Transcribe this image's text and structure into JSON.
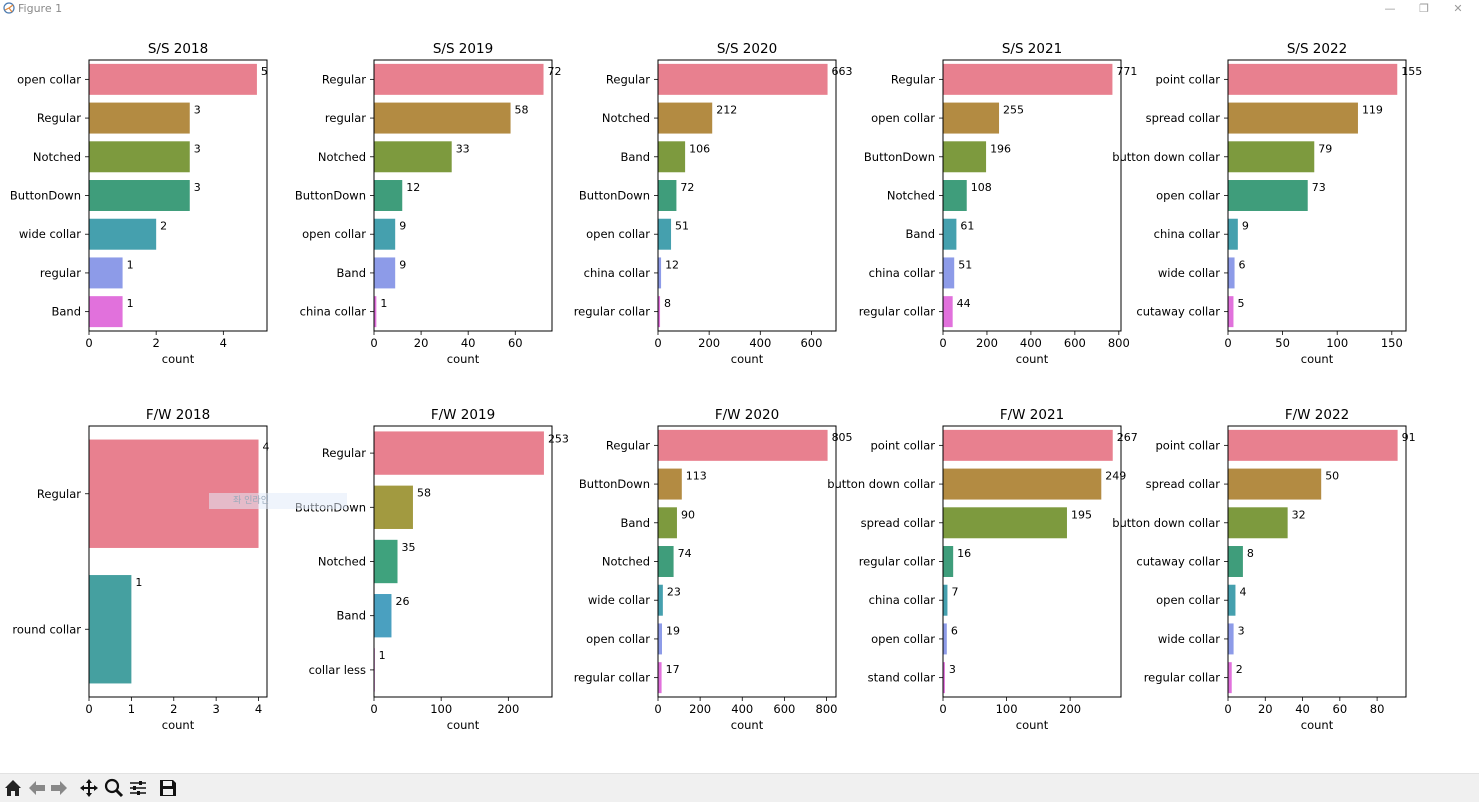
{
  "window": {
    "title": "Figure 1",
    "minimize": "—",
    "restore": "❐",
    "close": "✕"
  },
  "toolbar": {
    "buttons": [
      {
        "name": "home-icon"
      },
      {
        "name": "back-icon"
      },
      {
        "name": "forward-icon"
      },
      {
        "name": "pan-icon"
      },
      {
        "name": "zoom-icon"
      },
      {
        "name": "configure-subplots-icon"
      },
      {
        "name": "save-icon"
      }
    ]
  },
  "tooltip": "좌 인라인",
  "palette": [
    "#e8808f",
    "#b38b42",
    "#7d9a3e",
    "#3f9d7b",
    "#45a0ae",
    "#8d9be8",
    "#e171dc"
  ],
  "chart_data": [
    {
      "type": "bar",
      "orientation": "horizontal",
      "title": "S/S 2018",
      "xlabel": "count",
      "categories": [
        "open collar",
        "Regular",
        "Notched",
        "ButtonDown",
        "wide collar",
        "regular",
        "Band"
      ],
      "values": [
        5,
        3,
        3,
        3,
        2,
        1,
        1
      ],
      "xlim": [
        0,
        5.3
      ],
      "xticks": [
        0,
        2,
        4
      ]
    },
    {
      "type": "bar",
      "orientation": "horizontal",
      "title": "S/S 2019",
      "xlabel": "count",
      "categories": [
        "Regular",
        "regular",
        "Notched",
        "ButtonDown",
        "open collar",
        "Band",
        "china collar"
      ],
      "values": [
        72,
        58,
        33,
        12,
        9,
        9,
        1
      ],
      "xlim": [
        0,
        75.6
      ],
      "xticks": [
        0,
        20,
        40,
        60
      ]
    },
    {
      "type": "bar",
      "orientation": "horizontal",
      "title": "S/S 2020",
      "xlabel": "count",
      "categories": [
        "Regular",
        "Notched",
        "Band",
        "ButtonDown",
        "open collar",
        "china collar",
        "regular collar"
      ],
      "values": [
        663,
        212,
        106,
        72,
        51,
        12,
        8
      ],
      "xlim": [
        0,
        696
      ],
      "xticks": [
        0,
        200,
        400,
        600
      ]
    },
    {
      "type": "bar",
      "orientation": "horizontal",
      "title": "S/S 2021",
      "xlabel": "count",
      "categories": [
        "Regular",
        "open collar",
        "ButtonDown",
        "Notched",
        "Band",
        "china collar",
        "regular collar"
      ],
      "values": [
        771,
        255,
        196,
        108,
        61,
        51,
        44
      ],
      "xlim": [
        0,
        810
      ],
      "xticks": [
        0,
        200,
        400,
        600,
        800
      ]
    },
    {
      "type": "bar",
      "orientation": "horizontal",
      "title": "S/S 2022",
      "xlabel": "count",
      "categories": [
        "point collar",
        "spread collar",
        "button down collar",
        "open collar",
        "china collar",
        "wide collar",
        "cutaway collar"
      ],
      "values": [
        155,
        119,
        79,
        73,
        9,
        6,
        5
      ],
      "xlim": [
        0,
        163
      ],
      "xticks": [
        0,
        50,
        100,
        150
      ]
    },
    {
      "type": "bar",
      "orientation": "horizontal",
      "title": "F/W 2018",
      "xlabel": "count",
      "categories": [
        "Regular",
        "round collar"
      ],
      "values": [
        4,
        1
      ],
      "colors": [
        "#e8808f",
        "#45a0a0"
      ],
      "xlim": [
        0,
        4.2
      ],
      "xticks": [
        0,
        1,
        2,
        3,
        4
      ]
    },
    {
      "type": "bar",
      "orientation": "horizontal",
      "title": "F/W 2019",
      "xlabel": "count",
      "categories": [
        "Regular",
        "ButtonDown",
        "Notched",
        "Band",
        "collar less"
      ],
      "values": [
        253,
        58,
        35,
        26,
        1
      ],
      "colors": [
        "#e8808f",
        "#a29a40",
        "#3fa27d",
        "#4aa0c0",
        "#e171dc"
      ],
      "xlim": [
        0,
        265
      ],
      "xticks": [
        0,
        100,
        200
      ]
    },
    {
      "type": "bar",
      "orientation": "horizontal",
      "title": "F/W 2020",
      "xlabel": "count",
      "categories": [
        "Regular",
        "ButtonDown",
        "Band",
        "Notched",
        "wide collar",
        "open collar",
        "regular collar"
      ],
      "values": [
        805,
        113,
        90,
        74,
        23,
        19,
        17
      ],
      "xlim": [
        0,
        845
      ],
      "xticks": [
        0,
        200,
        400,
        600,
        800
      ]
    },
    {
      "type": "bar",
      "orientation": "horizontal",
      "title": "F/W 2021",
      "xlabel": "count",
      "categories": [
        "point collar",
        "button down collar",
        "spread collar",
        "regular collar",
        "china collar",
        "open collar",
        "stand collar"
      ],
      "values": [
        267,
        249,
        195,
        16,
        7,
        6,
        3
      ],
      "xlim": [
        0,
        280
      ],
      "xticks": [
        0,
        100,
        200
      ]
    },
    {
      "type": "bar",
      "orientation": "horizontal",
      "title": "F/W 2022",
      "xlabel": "count",
      "categories": [
        "point collar",
        "spread collar",
        "button down collar",
        "cutaway collar",
        "open collar",
        "wide collar",
        "regular collar"
      ],
      "values": [
        91,
        50,
        32,
        8,
        4,
        3,
        2
      ],
      "xlim": [
        0,
        95.5
      ],
      "xticks": [
        0,
        20,
        40,
        60,
        80
      ]
    }
  ]
}
